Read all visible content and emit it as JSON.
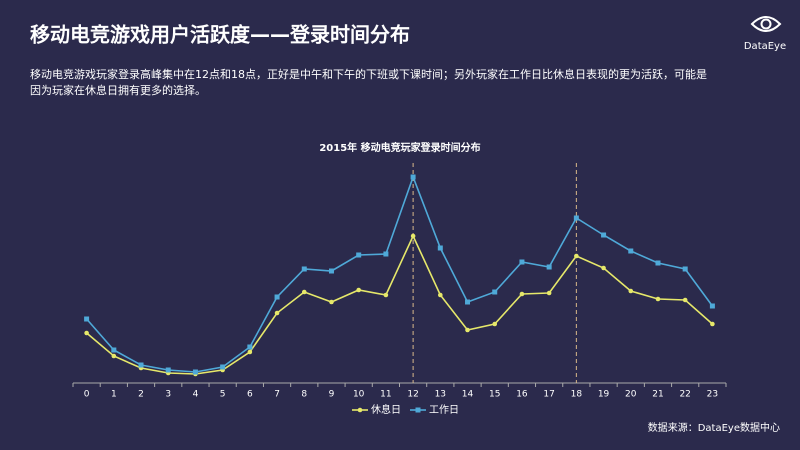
{
  "header": {
    "title": "移动电竞游戏用户活跃度——登录时间分布",
    "description": [
      "移动电竞游戏玩家登录高峰集中在12点和18点，正好是中午和下午的下班或下课时间；另外玩家在工作日比休息日表现的更为活跃，可能是",
      "因为玩家在休息日拥有更多的选择。"
    ],
    "logo": "DataEye"
  },
  "footer": {
    "source": "数据来源：DataEye数据中心"
  },
  "chart_data": {
    "type": "line",
    "title": "2015年 移动电竞玩家登录时间分布",
    "categories": [
      "0",
      "1",
      "2",
      "3",
      "4",
      "5",
      "6",
      "7",
      "8",
      "9",
      "10",
      "11",
      "12",
      "13",
      "14",
      "15",
      "16",
      "17",
      "18",
      "19",
      "20",
      "21",
      "22",
      "23"
    ],
    "series": [
      {
        "name": "休息日",
        "color": "#e6e86a",
        "values": [
          25,
          13.5,
          7.5,
          5,
          4.5,
          6.5,
          15.5,
          35,
          45.5,
          40.5,
          46.5,
          44,
          73.5,
          44,
          26.5,
          29.5,
          44.5,
          45,
          63.5,
          57.5,
          46,
          42,
          41.5,
          29.5
        ]
      },
      {
        "name": "工作日",
        "color": "#4fa9d8",
        "values": [
          32,
          16.5,
          9,
          6.5,
          5.5,
          8,
          18,
          43,
          57,
          56,
          64,
          64.5,
          103,
          67.5,
          40.5,
          45.5,
          60.5,
          58,
          82.5,
          74,
          66,
          60,
          57,
          38.5
        ]
      }
    ],
    "ylim": [
      0,
      110
    ],
    "highlight_categories": [
      12,
      18
    ],
    "legend": "bottom"
  }
}
